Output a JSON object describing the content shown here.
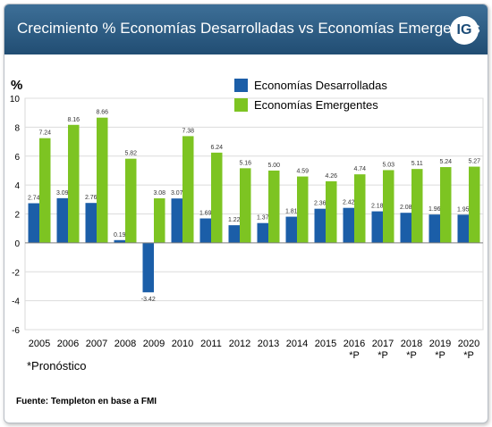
{
  "header": {
    "title": "Crecimiento % Economías Desarrolladas vs Economías Emergentes",
    "logo_text": "IG"
  },
  "footnote": "*Pronóstico",
  "source": "Fuente: Templeton en base a FMI",
  "colors": {
    "developed": "#1b5ea8",
    "emerging": "#7dc422",
    "header": "#2b5a80"
  },
  "chart_data": {
    "type": "bar",
    "ylabel": "%",
    "ylim": [
      -6,
      10
    ],
    "yticks": [
      -6,
      -4,
      -2,
      0,
      2,
      4,
      6,
      8,
      10
    ],
    "grid": true,
    "legend_position": "top-right",
    "categories": [
      "2005",
      "2006",
      "2007",
      "2008",
      "2009",
      "2010",
      "2011",
      "2012",
      "2013",
      "2014",
      "2015",
      "2016",
      "2017",
      "2018",
      "2019",
      "2020"
    ],
    "category_notes": [
      "",
      "",
      "",
      "",
      "",
      "",
      "",
      "",
      "",
      "",
      "",
      "*P",
      "*P",
      "*P",
      "*P",
      "*P"
    ],
    "series": [
      {
        "name": "Economías Desarrolladas",
        "color": "#1b5ea8",
        "values": [
          2.74,
          3.09,
          2.76,
          0.19,
          -3.42,
          3.07,
          1.69,
          1.22,
          1.37,
          1.81,
          2.36,
          2.42,
          2.18,
          2.08,
          1.96,
          1.95
        ]
      },
      {
        "name": "Economías Emergentes",
        "color": "#7dc422",
        "values": [
          7.24,
          8.16,
          8.66,
          5.82,
          3.08,
          7.38,
          6.24,
          5.16,
          5.0,
          4.59,
          4.26,
          4.74,
          5.03,
          5.11,
          5.24,
          5.27
        ]
      }
    ]
  }
}
